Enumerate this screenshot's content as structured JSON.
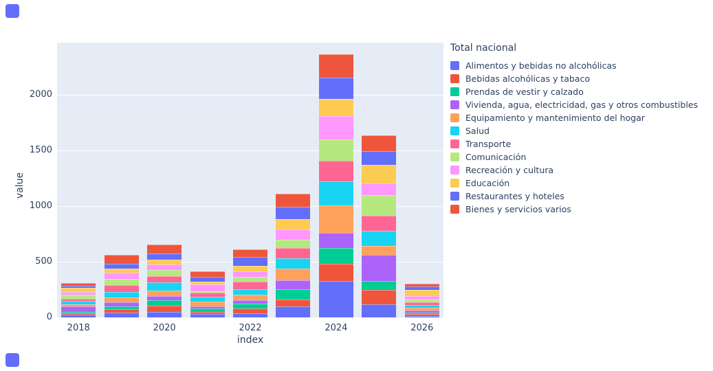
{
  "legend": {
    "title": "Total nacional"
  },
  "axes": {
    "x_label": "index",
    "y_label": "value",
    "y_ticks": [
      0,
      500,
      1000,
      1500,
      2000
    ],
    "x_ticks": [
      2018,
      2020,
      2022,
      2024,
      2026
    ]
  },
  "colors": {
    "plot_background": "#e5ecf6",
    "grid": "#ffffff",
    "text": "#2a3f5f",
    "corner_marker": "#636efa"
  },
  "chart_data": {
    "type": "bar",
    "stacked": true,
    "grid": true,
    "legend_position": "right",
    "title": "Total nacional",
    "xlabel": "index",
    "ylabel": "value",
    "ylim": [
      0,
      2466
    ],
    "x": [
      2018,
      2019,
      2020,
      2021,
      2022,
      2023,
      2024,
      2025,
      2026
    ],
    "series": [
      {
        "name": "Alimentos y bebidas no alcohólicas",
        "color": "#636efa",
        "values": [
          25,
          45,
          50,
          28,
          40,
          98,
          325,
          120,
          15
        ]
      },
      {
        "name": "Bebidas alcohólicas y tabaco",
        "color": "#ef553b",
        "values": [
          12,
          28,
          55,
          24,
          38,
          61,
          155,
          125,
          15
        ]
      },
      {
        "name": "Prendas de vestir y calzado",
        "color": "#00cc96",
        "values": [
          15,
          25,
          50,
          28,
          48,
          95,
          145,
          80,
          15
        ]
      },
      {
        "name": "Vivienda, agua, electricidad, gas y otros combustibles",
        "color": "#ab63fa",
        "values": [
          48,
          38,
          35,
          18,
          28,
          82,
          135,
          235,
          20
        ]
      },
      {
        "name": "Equipamiento y mantenimiento del hogar",
        "color": "#ffa15a",
        "values": [
          18,
          45,
          52,
          44,
          48,
          103,
          245,
          80,
          20
        ]
      },
      {
        "name": "Salud",
        "color": "#19d3f3",
        "values": [
          30,
          45,
          70,
          44,
          48,
          92,
          215,
          135,
          25
        ]
      },
      {
        "name": "Transporte",
        "color": "#ff6692",
        "values": [
          18,
          65,
          61,
          36,
          68,
          92,
          185,
          135,
          25
        ]
      },
      {
        "name": "Comunicación",
        "color": "#b6e880",
        "values": [
          36,
          55,
          52,
          10,
          48,
          72,
          195,
          185,
          25
        ]
      },
      {
        "name": "Recreación y cultura",
        "color": "#ff97ff",
        "values": [
          28,
          55,
          52,
          62,
          48,
          92,
          205,
          110,
          30
        ]
      },
      {
        "name": "Educación",
        "color": "#fecb52",
        "values": [
          36,
          38,
          44,
          28,
          48,
          92,
          155,
          165,
          60
        ]
      },
      {
        "name": "Restaurantes y hoteles",
        "color": "#636efa",
        "values": [
          20,
          45,
          52,
          44,
          78,
          112,
          195,
          125,
          30
        ]
      },
      {
        "name": "Bienes y servicios varios",
        "color": "#ef553b",
        "values": [
          24,
          75,
          79,
          46,
          70,
          120,
          205,
          140,
          25
        ]
      }
    ]
  }
}
